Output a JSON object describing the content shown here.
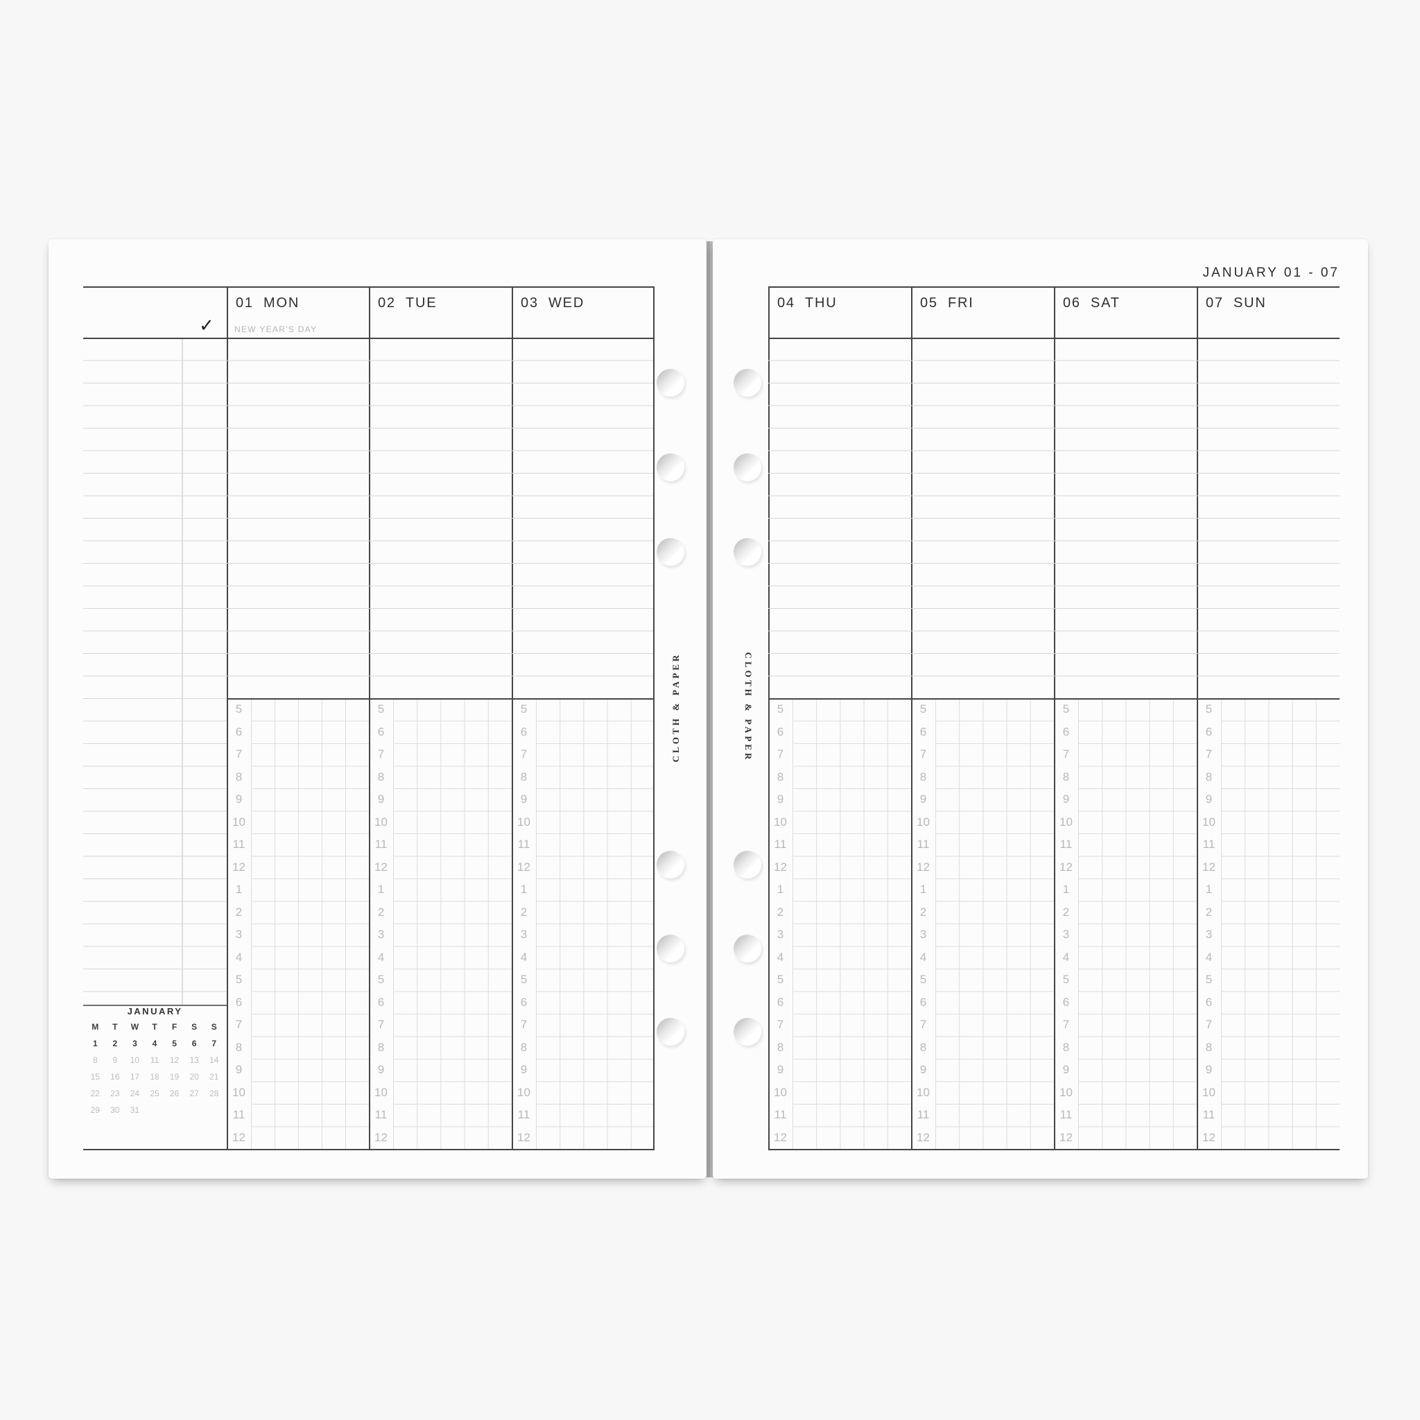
{
  "page_header": {
    "week_label": "JANUARY 01 - 07"
  },
  "brand": {
    "name": "CLOTH & PAPER"
  },
  "left_page": {
    "checkmark_symbol": "✓",
    "days": [
      {
        "num": "01",
        "name": "MON",
        "note": "NEW YEAR'S DAY"
      },
      {
        "num": "02",
        "name": "TUE",
        "note": ""
      },
      {
        "num": "03",
        "name": "WED",
        "note": ""
      }
    ]
  },
  "right_page": {
    "days": [
      {
        "num": "04",
        "name": "THU",
        "note": ""
      },
      {
        "num": "05",
        "name": "FRI",
        "note": ""
      },
      {
        "num": "06",
        "name": "SAT",
        "note": ""
      },
      {
        "num": "07",
        "name": "SUN",
        "note": ""
      }
    ]
  },
  "schedule": {
    "hours": [
      "5",
      "6",
      "7",
      "8",
      "9",
      "10",
      "11",
      "12",
      "1",
      "2",
      "3",
      "4",
      "5",
      "6",
      "7",
      "8",
      "9",
      "10",
      "11",
      "12"
    ]
  },
  "mini_calendar": {
    "title": "JANUARY",
    "weekday_headers": [
      "M",
      "T",
      "W",
      "T",
      "F",
      "S",
      "S"
    ],
    "weeks": [
      [
        "1",
        "2",
        "3",
        "4",
        "5",
        "6",
        "7"
      ],
      [
        "8",
        "9",
        "10",
        "11",
        "12",
        "13",
        "14"
      ],
      [
        "15",
        "16",
        "17",
        "18",
        "19",
        "20",
        "21"
      ],
      [
        "22",
        "23",
        "24",
        "25",
        "26",
        "27",
        "28"
      ],
      [
        "29",
        "30",
        "31",
        "",
        "",
        "",
        ""
      ]
    ],
    "emphasized_week_index": 0
  },
  "colors": {
    "line_dark": "#454545",
    "ruled_line": "#d6d6d6",
    "grid_line": "#dcdcdc",
    "text_dark": "#2f2f2f",
    "text_muted": "#b5b5b5",
    "hour_label": "#b8b8b8",
    "calendar_muted": "#bdbdbd",
    "page_bg": "#fcfcfc",
    "backdrop": "#f7f7f7"
  }
}
